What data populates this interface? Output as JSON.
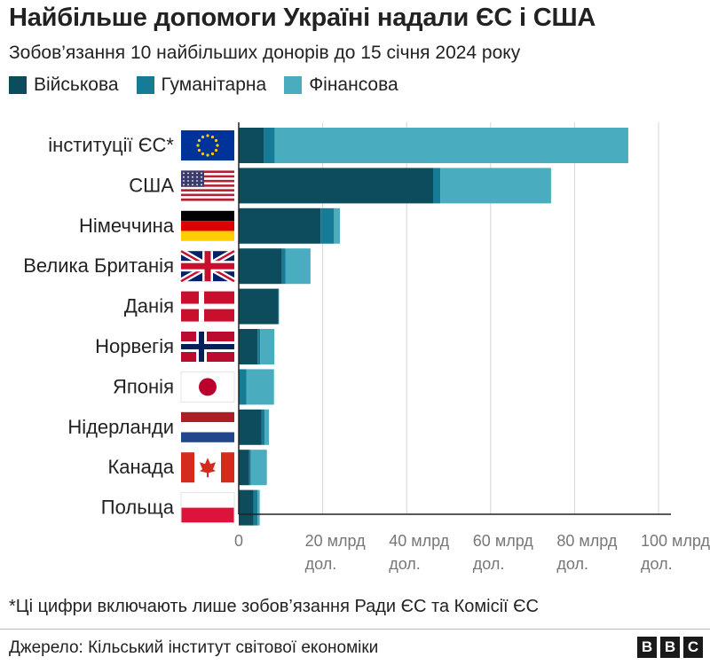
{
  "title": "Найбільше допомоги Україні надали ЄС і США",
  "subtitle": "Зобов’язання 10 найбільших донорів до 15 січня 2024 року",
  "footnote": "*Ці цифри включають лише зобов’язання Ради ЄС та Комісії ЄС",
  "source": "Джерело: Кільський інститут світової економіки",
  "brand": {
    "letters": [
      "B",
      "B",
      "C"
    ]
  },
  "chart_data": {
    "type": "bar",
    "orientation": "horizontal",
    "stacked": true,
    "title": "Найбільше допомоги Україні надали ЄС і США",
    "subtitle": "Зобов’язання 10 найбільших донорів до 15 січня 2024 року",
    "categories": [
      "інституції ЄС*",
      "США",
      "Німеччина",
      "Велика Британія",
      "Данія",
      "Норвегія",
      "Японія",
      "Нідерланди",
      "Канада",
      "Польща"
    ],
    "flags": [
      "eu",
      "usa",
      "germany",
      "uk",
      "denmark",
      "norway",
      "japan",
      "netherlands",
      "canada",
      "poland"
    ],
    "series": [
      {
        "name": "Військова",
        "color": "#0d4c5c",
        "values": [
          6.0,
          46.3,
          19.5,
          10.3,
          9.4,
          4.5,
          0.1,
          5.4,
          2.5,
          3.5
        ]
      },
      {
        "name": "Гуманітарна",
        "color": "#167c96",
        "values": [
          2.6,
          1.7,
          3.2,
          0.8,
          0.1,
          0.6,
          1.7,
          0.8,
          0.4,
          1.0
        ]
      },
      {
        "name": "Фінансова",
        "color": "#4aadbf",
        "values": [
          84.2,
          26.4,
          1.4,
          6.0,
          0.1,
          3.4,
          6.6,
          1.0,
          3.8,
          0.5
        ]
      }
    ],
    "x_ticks": [
      {
        "value": 0,
        "line1": "0",
        "line2": ""
      },
      {
        "value": 20,
        "line1": "20 млрд",
        "line2": "дол."
      },
      {
        "value": 40,
        "line1": "40 млрд",
        "line2": "дол."
      },
      {
        "value": 60,
        "line1": "60 млрд",
        "line2": "дол."
      },
      {
        "value": 80,
        "line1": "80 млрд",
        "line2": "дол."
      },
      {
        "value": 100,
        "line1": "100 млрд",
        "line2": "дол."
      }
    ],
    "xlim": [
      0,
      100
    ],
    "grid": true,
    "legend_position": "top-left"
  }
}
